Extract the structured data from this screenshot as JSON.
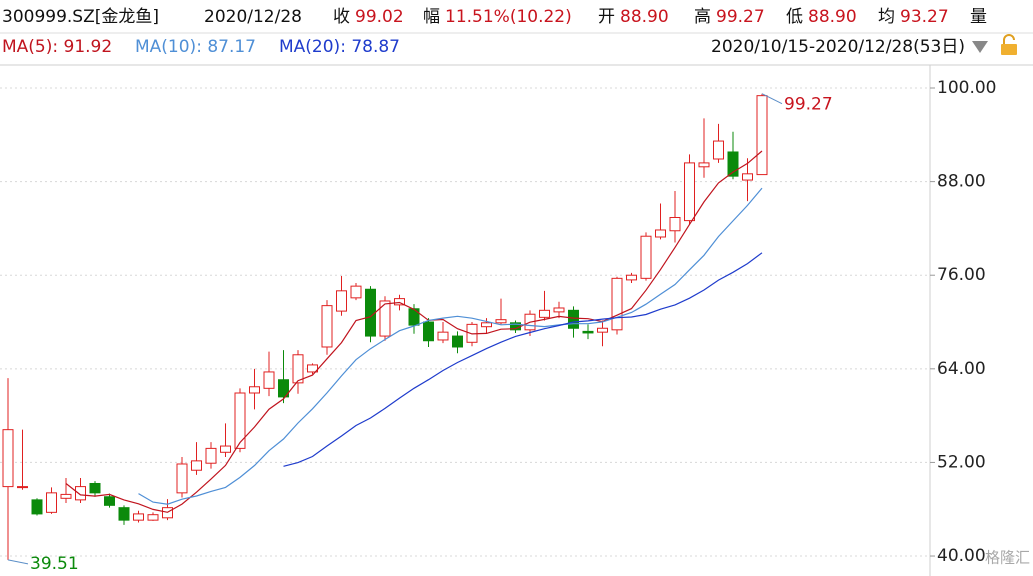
{
  "header": {
    "code": "300999.SZ[金龙鱼]",
    "date": "2020/12/28",
    "items": [
      {
        "label": "收",
        "value": "99.02"
      },
      {
        "label": "幅",
        "value": "11.51%(10.22)"
      },
      {
        "label": "开",
        "value": "88.90"
      },
      {
        "label": "高",
        "value": "99.27"
      },
      {
        "label": "低",
        "value": "88.90"
      },
      {
        "label": "均",
        "value": "93.27"
      }
    ],
    "volume_label": "量",
    "range": "2020/10/15-2020/12/28(53日)",
    "watermark": "格隆汇"
  },
  "chart_data": {
    "type": "candlestick",
    "open": [
      48.9,
      48.8,
      47.2,
      45.6,
      47.4,
      47.2,
      49.3,
      47.6,
      46.2,
      44.6,
      44.6,
      44.9,
      48.1,
      51.0,
      51.9,
      53.3,
      53.8,
      60.9,
      61.5,
      62.6,
      62.2,
      63.6,
      66.8,
      71.4,
      73.1,
      74.2,
      68.2,
      72.2,
      71.7,
      70.0,
      67.7,
      68.2,
      67.4,
      69.4,
      69.9,
      69.9,
      69.0,
      70.6,
      71.3,
      71.5,
      68.8,
      68.7,
      69.0,
      75.4,
      75.6,
      80.9,
      81.7,
      83.0,
      89.9,
      90.9,
      91.8,
      88.2,
      88.9
    ],
    "high": [
      62.8,
      56.2,
      47.4,
      48.8,
      50.0,
      50.0,
      49.6,
      48.0,
      46.5,
      45.8,
      45.6,
      47.3,
      52.7,
      54.6,
      54.6,
      57.0,
      61.5,
      64.0,
      66.2,
      66.4,
      66.4,
      64.7,
      72.8,
      75.9,
      75.0,
      74.6,
      73.3,
      73.5,
      72.3,
      70.5,
      70.0,
      68.8,
      70.0,
      70.5,
      73.0,
      70.2,
      71.5,
      74.0,
      72.6,
      72.0,
      69.7,
      70.2,
      75.8,
      76.3,
      81.5,
      85.2,
      86.8,
      91.5,
      96.1,
      95.4,
      94.4,
      91.0,
      99.27
    ],
    "low": [
      39.51,
      48.5,
      45.2,
      45.4,
      46.8,
      46.8,
      47.6,
      46.2,
      44.0,
      44.3,
      44.5,
      44.6,
      47.5,
      50.4,
      51.2,
      52.7,
      53.3,
      58.8,
      60.5,
      59.6,
      60.8,
      63.3,
      65.8,
      70.8,
      72.8,
      67.4,
      67.6,
      71.5,
      68.5,
      66.8,
      67.3,
      66.0,
      66.9,
      68.5,
      69.7,
      68.6,
      68.2,
      70.2,
      70.5,
      68.0,
      67.8,
      66.9,
      68.4,
      75.0,
      75.3,
      80.6,
      80.2,
      82.5,
      88.5,
      90.4,
      88.3,
      85.5,
      88.9
    ],
    "close": [
      56.2,
      48.9,
      45.4,
      48.1,
      47.9,
      48.9,
      48.1,
      46.5,
      44.6,
      45.4,
      45.3,
      46.2,
      51.8,
      52.2,
      53.8,
      54.1,
      60.9,
      61.7,
      63.6,
      60.4,
      65.8,
      64.5,
      72.1,
      74.0,
      74.6,
      68.2,
      72.7,
      73.0,
      69.6,
      67.6,
      68.7,
      66.8,
      69.7,
      69.9,
      70.3,
      69.0,
      71.0,
      71.5,
      71.8,
      69.2,
      68.6,
      69.2,
      75.6,
      76.0,
      81.0,
      81.8,
      83.4,
      90.4,
      90.4,
      93.2,
      88.7,
      89.0,
      99.02
    ],
    "up_color": "#e02020",
    "down_color": "#0b8a0b",
    "series": [
      {
        "name": "MA(5): 91.92",
        "color": "#c0141e",
        "values": [
          null,
          null,
          null,
          null,
          49.3,
          47.84,
          47.68,
          47.9,
          47.2,
          46.7,
          45.98,
          45.6,
          46.66,
          48.18,
          49.86,
          51.62,
          54.56,
          56.54,
          58.82,
          60.14,
          62.48,
          63.2,
          65.28,
          67.36,
          70.2,
          70.68,
          72.32,
          72.5,
          71.62,
          70.22,
          70.32,
          69.14,
          68.48,
          68.54,
          69.08,
          69.14,
          69.98,
          70.34,
          70.72,
          70.5,
          70.42,
          70.06,
          70.88,
          71.72,
          74.08,
          76.72,
          79.56,
          82.52,
          85.4,
          87.84,
          89.22,
          90.34,
          91.92
        ]
      },
      {
        "name": "MA(10): 87.17",
        "color": "#4f8fd6",
        "values": [
          null,
          null,
          null,
          null,
          null,
          null,
          null,
          null,
          null,
          48.0,
          46.91,
          46.64,
          47.28,
          47.69,
          48.28,
          48.8,
          50.08,
          51.6,
          53.5,
          55.0,
          57.05,
          58.88,
          60.91,
          63.09,
          65.17,
          66.58,
          67.76,
          68.89,
          69.49,
          70.21,
          70.5,
          70.73,
          70.49,
          70.08,
          69.65,
          69.73,
          69.56,
          69.41,
          69.63,
          69.79,
          69.78,
          70.02,
          70.61,
          71.22,
          72.29,
          73.57,
          74.81,
          76.7,
          78.56,
          80.96,
          82.97,
          84.95,
          87.17
        ]
      },
      {
        "name": "MA(20): 78.87",
        "color": "#1f3ccc",
        "values": [
          null,
          null,
          null,
          null,
          null,
          null,
          null,
          null,
          null,
          null,
          null,
          null,
          null,
          null,
          null,
          null,
          null,
          null,
          null,
          51.5,
          51.98,
          52.76,
          54.1,
          55.39,
          56.73,
          57.69,
          58.92,
          60.25,
          61.5,
          62.61,
          63.78,
          64.81,
          65.7,
          66.59,
          67.41,
          68.16,
          68.66,
          69.15,
          69.56,
          70.0,
          70.14,
          70.38,
          70.55,
          70.65,
          70.97,
          71.65,
          72.19,
          73.06,
          74.1,
          75.38,
          76.38,
          77.49,
          78.87
        ]
      }
    ],
    "ylim": [
      37.44,
      102.95
    ],
    "yticks": [
      {
        "value": 100,
        "label": "100.00"
      },
      {
        "value": 88,
        "label": "88.00"
      },
      {
        "value": 76,
        "label": "76.00"
      },
      {
        "value": 64,
        "label": "64.00"
      },
      {
        "value": 52,
        "label": "52.00"
      },
      {
        "value": 40,
        "label": "40.00"
      }
    ],
    "grid": true
  }
}
